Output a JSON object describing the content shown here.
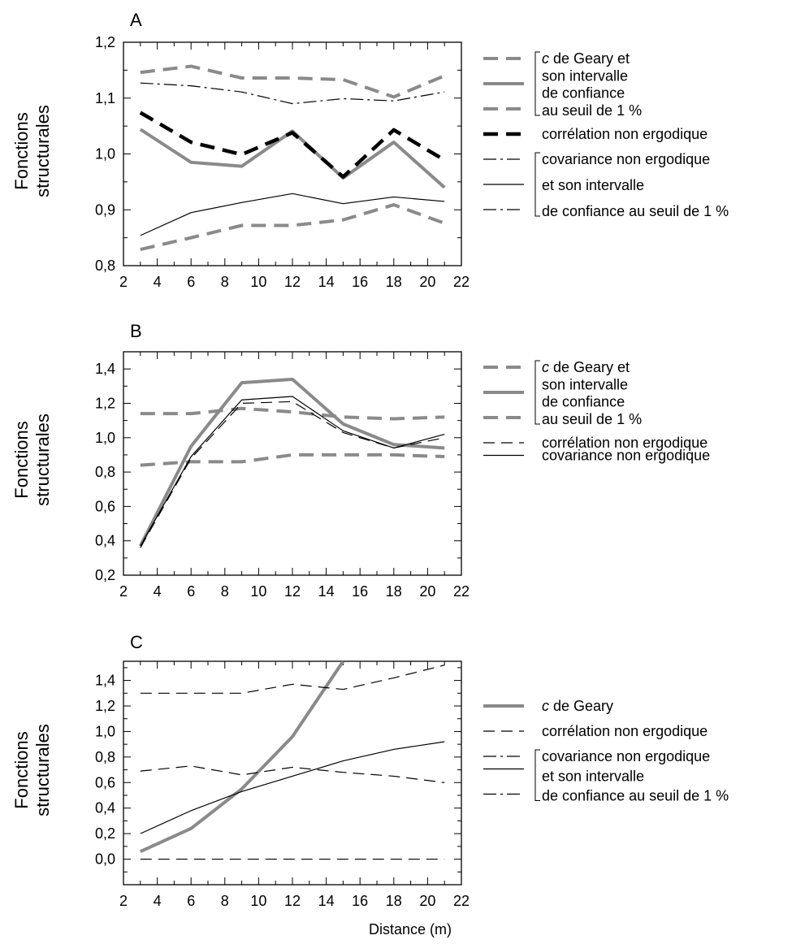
{
  "colors": {
    "gray": "#8a8a8a",
    "black": "#000000",
    "white": "#ffffff"
  },
  "figure": {
    "xlabel": "Distance (m)"
  },
  "chart_data": [
    {
      "id": "A",
      "type": "line",
      "panel_label": "A",
      "ylabel": [
        "Fonctions",
        "structurales"
      ],
      "xlim": [
        2,
        22
      ],
      "ylim": [
        0.8,
        1.2
      ],
      "xticks": [
        2,
        4,
        6,
        8,
        10,
        12,
        14,
        16,
        18,
        20,
        22
      ],
      "xtick_labels": [
        "2",
        "4",
        "6",
        "8",
        "10",
        "12",
        "14",
        "16",
        "18",
        "20",
        "22"
      ],
      "yticks": [
        0.8,
        0.9,
        1.0,
        1.1,
        1.2
      ],
      "ytick_labels": [
        "0,8",
        "0,9",
        "1,0",
        "1,1",
        "1,2"
      ],
      "x": [
        3,
        6,
        9,
        12,
        15,
        18,
        21
      ],
      "series": [
        {
          "values": [
            1.146,
            1.157,
            1.136,
            1.136,
            1.133,
            1.102,
            1.14
          ],
          "style": "gray-dash"
        },
        {
          "values": [
            1.044,
            0.985,
            0.978,
            1.041,
            0.957,
            1.021,
            0.94
          ],
          "style": "gray-solid"
        },
        {
          "values": [
            0.829,
            0.85,
            0.872,
            0.872,
            0.882,
            0.909,
            0.876
          ],
          "style": "gray-dash"
        },
        {
          "values": [
            1.074,
            1.021,
            0.999,
            1.038,
            0.959,
            1.043,
            0.989
          ],
          "style": "black-dash"
        },
        {
          "values": [
            1.127,
            1.122,
            1.111,
            1.09,
            1.099,
            1.095,
            1.111
          ],
          "style": "thin-dashdot"
        },
        {
          "values": [
            0.854,
            0.895,
            0.913,
            0.929,
            0.911,
            0.923,
            0.915
          ],
          "style": "thin-solid"
        }
      ],
      "legend": [
        {
          "style": "gray-dash",
          "text": "",
          "row": 0
        },
        {
          "style": "gray-solid",
          "text": "",
          "row": 2
        },
        {
          "style": "gray-dash",
          "text": "",
          "row": 4
        },
        {
          "style": "black-dash",
          "text": "corrélation non ergodique",
          "row": 6
        },
        {
          "style": "thin-dashdot",
          "text": "",
          "row": 8
        },
        {
          "style": "thin-solid",
          "text": "",
          "row": 10
        },
        {
          "style": "thin-dashdot",
          "text": "",
          "row": 12
        }
      ],
      "legend_groups": [
        {
          "lines": [
            "c de Geary et",
            "son intervalle",
            "de confiance",
            "au seuil de 1 %"
          ],
          "italic_prefix": "c"
        },
        {
          "lines": [
            "covariance non ergodique",
            "et son intervalle",
            "de confiance au seuil de 1 %"
          ]
        }
      ]
    },
    {
      "id": "B",
      "type": "line",
      "panel_label": "B",
      "ylabel": [
        "Fonctions",
        "structurales"
      ],
      "xlim": [
        2,
        22
      ],
      "ylim": [
        0.2,
        1.5
      ],
      "xticks": [
        2,
        4,
        6,
        8,
        10,
        12,
        14,
        16,
        18,
        20,
        22
      ],
      "xtick_labels": [
        "2",
        "4",
        "6",
        "8",
        "10",
        "12",
        "14",
        "16",
        "18",
        "20",
        "22"
      ],
      "yticks": [
        0.2,
        0.4,
        0.6,
        0.8,
        1.0,
        1.2,
        1.4
      ],
      "ytick_labels": [
        "0,2",
        "0,4",
        "0,6",
        "0,8",
        "1,0",
        "1,2",
        "1,4"
      ],
      "x": [
        3,
        6,
        9,
        12,
        15,
        18,
        21
      ],
      "series": [
        {
          "values": [
            1.14,
            1.14,
            1.17,
            1.15,
            1.12,
            1.11,
            1.12
          ],
          "style": "gray-dash"
        },
        {
          "values": [
            0.37,
            0.95,
            1.32,
            1.34,
            1.08,
            0.96,
            0.94
          ],
          "style": "gray-solid"
        },
        {
          "values": [
            0.84,
            0.86,
            0.86,
            0.9,
            0.9,
            0.9,
            0.89
          ],
          "style": "gray-dash"
        },
        {
          "values": [
            0.36,
            0.88,
            1.2,
            1.21,
            1.03,
            0.94,
            1.0
          ],
          "style": "thin-dash"
        },
        {
          "values": [
            0.37,
            0.89,
            1.22,
            1.24,
            1.04,
            0.94,
            1.02
          ],
          "style": "thin-solid"
        }
      ],
      "legend": [
        {
          "style": "gray-dash",
          "text": "",
          "row": 0
        },
        {
          "style": "gray-solid",
          "text": "",
          "row": 2
        },
        {
          "style": "gray-dash",
          "text": "",
          "row": 4
        },
        {
          "style": "thin-dash",
          "text": "corrélation non ergodique",
          "row": 6
        },
        {
          "style": "thin-solid",
          "text": "covariance non ergodique",
          "row": 7
        }
      ],
      "legend_groups": [
        {
          "lines": [
            "c de Geary et",
            "son intervalle",
            "de confiance",
            "au seuil de 1 %"
          ],
          "italic_prefix": "c"
        }
      ]
    },
    {
      "id": "C",
      "type": "line",
      "panel_label": "C",
      "ylabel": [
        "Fonctions",
        "structurales"
      ],
      "xlim": [
        2,
        22
      ],
      "ylim": [
        -0.2,
        1.55
      ],
      "xticks": [
        2,
        4,
        6,
        8,
        10,
        12,
        14,
        16,
        18,
        20,
        22
      ],
      "xtick_labels": [
        "2",
        "4",
        "6",
        "8",
        "10",
        "12",
        "14",
        "16",
        "18",
        "20",
        "22"
      ],
      "yticks": [
        0.0,
        0.2,
        0.4,
        0.6,
        0.8,
        1.0,
        1.2,
        1.4
      ],
      "ytick_labels": [
        "0,0",
        "0,2",
        "0,4",
        "0,6",
        "0,8",
        "1,0",
        "1,2",
        "1,4"
      ],
      "x": [
        3,
        6,
        9,
        12,
        15,
        18,
        21
      ],
      "series": [
        {
          "values": [
            0.06,
            0.24,
            0.55,
            0.96,
            1.55
          ],
          "style": "gray-solid",
          "x": [
            3,
            6,
            9,
            12,
            15
          ]
        },
        {
          "values": [
            1.3,
            1.3,
            1.3,
            1.37,
            1.33,
            1.42,
            1.52
          ],
          "style": "thin-dash"
        },
        {
          "values": [
            0.69,
            0.73,
            0.66,
            0.72,
            0.68,
            0.65,
            0.6
          ],
          "style": "thin-dash"
        },
        {
          "values": [
            0.0,
            0.0,
            0.0,
            0.0,
            0.0,
            0.0,
            0.0
          ],
          "style": "thin-dash"
        },
        {
          "values": [
            0.2,
            0.38,
            0.53,
            0.65,
            0.77,
            0.86,
            0.92
          ],
          "style": "thin-solid"
        }
      ],
      "legend": [
        {
          "style": "gray-solid",
          "text": "",
          "row": 0
        },
        {
          "style": "thin-dash",
          "text": "corrélation non ergodique",
          "row": 2
        },
        {
          "style": "thin-dashdot",
          "text": "",
          "row": 4
        },
        {
          "style": "thin-solid",
          "text": "",
          "row": 5
        },
        {
          "style": "thin-dashdot",
          "text": "",
          "row": 7
        }
      ],
      "legend_groups": [
        {
          "lines": [
            "c de Geary"
          ],
          "italic_prefix": "c"
        },
        {
          "lines": [
            "covariance non ergodique",
            "et son intervalle",
            "de confiance au seuil de 1 %"
          ]
        }
      ]
    }
  ]
}
